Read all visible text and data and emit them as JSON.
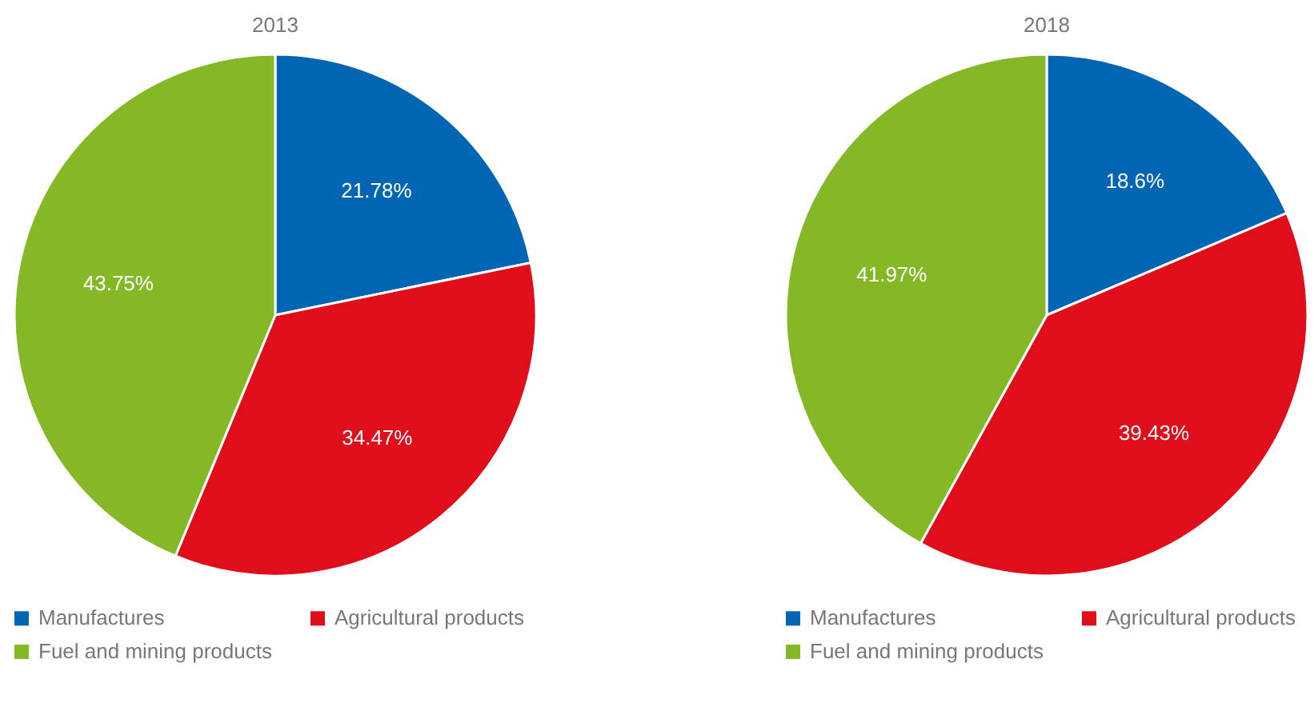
{
  "chart_data": [
    {
      "type": "pie",
      "title": "2013",
      "categories": [
        "Manufactures",
        "Agricultural products",
        "Fuel and mining products"
      ],
      "values": [
        21.78,
        34.47,
        43.75
      ],
      "value_labels": [
        "21.78%",
        "34.47%",
        "43.75%"
      ],
      "colors": [
        "#0066b3",
        "#e00d1a",
        "#85b827"
      ],
      "legend": "bottom"
    },
    {
      "type": "pie",
      "title": "2018",
      "categories": [
        "Manufactures",
        "Agricultural products",
        "Fuel and mining products"
      ],
      "values": [
        18.6,
        39.43,
        41.97
      ],
      "value_labels": [
        "18.6%",
        "39.43%",
        "41.97%"
      ],
      "colors": [
        "#0066b3",
        "#e00d1a",
        "#85b827"
      ],
      "legend": "bottom"
    }
  ]
}
